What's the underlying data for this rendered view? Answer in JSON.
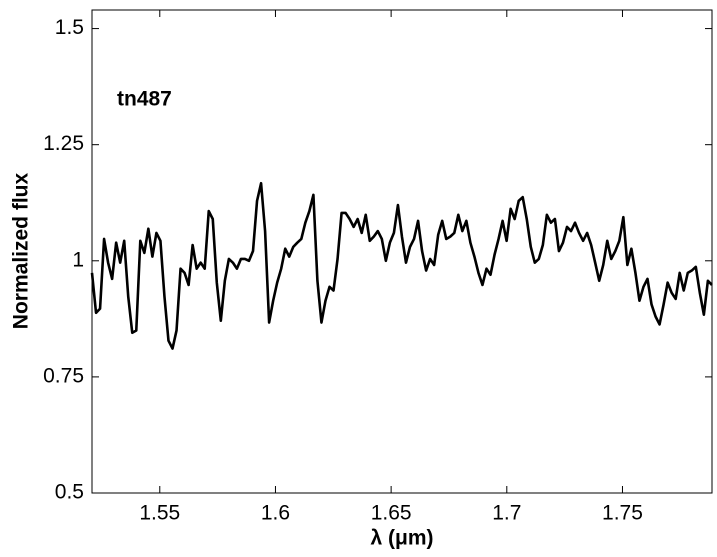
{
  "chart_data": {
    "type": "line",
    "annotation": "tn487",
    "xlabel": "λ (μm)",
    "ylabel": "Normalized flux",
    "color": "#000000",
    "xlim": [
      1.5207,
      1.7887
    ],
    "ylim": [
      0.5,
      1.54
    ],
    "xticks": [
      1.55,
      1.6,
      1.65,
      1.7,
      1.75
    ],
    "yticks": [
      0.5,
      0.75,
      1,
      1.25,
      1.5
    ],
    "x": [
      1.5207,
      1.52244,
      1.52418,
      1.52592,
      1.52766,
      1.5294,
      1.53114,
      1.53288,
      1.53462,
      1.53636,
      1.5381,
      1.53984,
      1.54158,
      1.54332,
      1.54506,
      1.5468,
      1.54854,
      1.55028,
      1.55202,
      1.55376,
      1.5555,
      1.55724,
      1.55898,
      1.56072,
      1.56246,
      1.5642,
      1.56594,
      1.56768,
      1.56942,
      1.57116,
      1.5729,
      1.57464,
      1.57638,
      1.57812,
      1.57986,
      1.5816,
      1.58334,
      1.58508,
      1.58682,
      1.58856,
      1.5903,
      1.59204,
      1.59378,
      1.59552,
      1.59726,
      1.599,
      1.60074,
      1.60248,
      1.60422,
      1.60596,
      1.6077,
      1.60944,
      1.61118,
      1.61292,
      1.61466,
      1.6164,
      1.61814,
      1.61988,
      1.62162,
      1.62336,
      1.6251,
      1.62684,
      1.62858,
      1.63032,
      1.63206,
      1.6338,
      1.63554,
      1.63728,
      1.63902,
      1.64076,
      1.6425,
      1.64424,
      1.64598,
      1.64772,
      1.64946,
      1.6512,
      1.65294,
      1.65468,
      1.65642,
      1.65816,
      1.6599,
      1.66164,
      1.66338,
      1.66512,
      1.66686,
      1.6686,
      1.67034,
      1.67208,
      1.67382,
      1.67556,
      1.6773,
      1.67904,
      1.68078,
      1.68252,
      1.68426,
      1.686,
      1.68774,
      1.68948,
      1.69122,
      1.69296,
      1.6947,
      1.69644,
      1.69818,
      1.69992,
      1.70166,
      1.7034,
      1.70514,
      1.70688,
      1.70862,
      1.71036,
      1.7121,
      1.71384,
      1.71558,
      1.71732,
      1.71906,
      1.7208,
      1.72254,
      1.72428,
      1.72602,
      1.72776,
      1.7295,
      1.73124,
      1.73298,
      1.73472,
      1.73646,
      1.7382,
      1.73994,
      1.74168,
      1.74342,
      1.74516,
      1.7469,
      1.74864,
      1.75038,
      1.75212,
      1.75386,
      1.7556,
      1.75734,
      1.75908,
      1.76082,
      1.76256,
      1.7643,
      1.76604,
      1.76778,
      1.76952,
      1.77126,
      1.773,
      1.77474,
      1.77648,
      1.77822,
      1.77996,
      1.7817,
      1.78344,
      1.78518,
      1.78692,
      1.78866
    ],
    "values": [
      0.974,
      0.888,
      0.897,
      1.047,
      0.996,
      0.961,
      1.039,
      0.996,
      1.043,
      0.923,
      0.845,
      0.85,
      1.043,
      1.017,
      1.069,
      1.009,
      1.06,
      1.043,
      0.923,
      0.828,
      0.811,
      0.85,
      0.983,
      0.974,
      0.948,
      1.034,
      0.983,
      0.996,
      0.983,
      1.107,
      1.09,
      0.953,
      0.871,
      0.957,
      1.004,
      0.996,
      0.983,
      1.004,
      1.004,
      1.0,
      1.021,
      1.129,
      1.167,
      1.064,
      0.867,
      0.914,
      0.953,
      0.983,
      1.026,
      1.009,
      1.03,
      1.039,
      1.047,
      1.082,
      1.107,
      1.142,
      0.957,
      0.867,
      0.914,
      0.944,
      0.936,
      1.004,
      1.103,
      1.103,
      1.09,
      1.073,
      1.09,
      1.06,
      1.099,
      1.043,
      1.052,
      1.064,
      1.047,
      1.0,
      1.039,
      1.06,
      1.12,
      1.052,
      0.996,
      1.03,
      1.047,
      1.086,
      1.021,
      0.979,
      1.004,
      0.991,
      1.056,
      1.086,
      1.047,
      1.052,
      1.06,
      1.099,
      1.064,
      1.086,
      1.039,
      1.009,
      0.974,
      0.948,
      0.983,
      0.97,
      1.013,
      1.047,
      1.086,
      1.043,
      1.112,
      1.09,
      1.129,
      1.137,
      1.09,
      1.03,
      0.996,
      1.004,
      1.034,
      1.099,
      1.082,
      1.09,
      1.021,
      1.039,
      1.073,
      1.064,
      1.082,
      1.06,
      1.043,
      1.06,
      1.034,
      0.996,
      0.957,
      0.991,
      1.043,
      1.004,
      1.021,
      1.043,
      1.094,
      0.991,
      1.026,
      0.974,
      0.914,
      0.944,
      0.961,
      0.906,
      0.88,
      0.863,
      0.906,
      0.953,
      0.931,
      0.918,
      0.974,
      0.936,
      0.974,
      0.979,
      0.987,
      0.931,
      0.884,
      0.957,
      0.948
    ]
  }
}
